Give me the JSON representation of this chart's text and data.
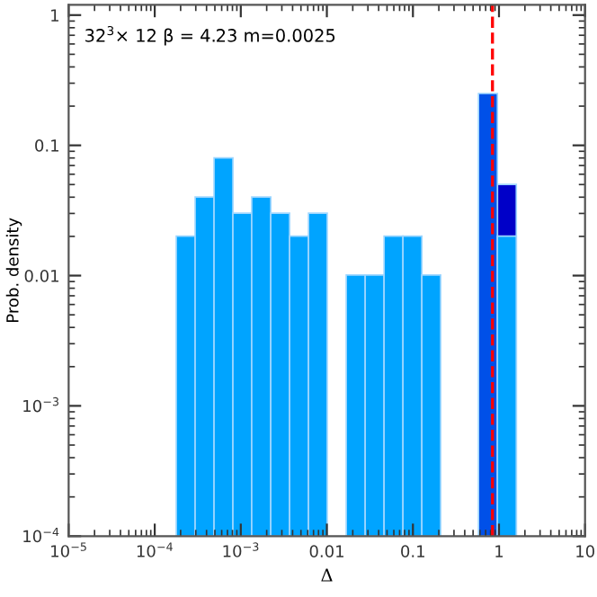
{
  "chart_data": {
    "type": "histogram",
    "annotations": [
      "32$^{3}$× 12 β = 4.23 m=0.0025"
    ],
    "xlabel": "Δ",
    "ylabel": "Prob. density",
    "bins": [
      0.000178,
      0.000295,
      0.000489,
      0.00081,
      0.00134,
      0.00223,
      0.00369,
      0.00612,
      0.0101,
      0.0168,
      0.0279,
      0.0462,
      0.0766,
      0.127,
      0.21,
      0.349,
      0.578,
      0.959,
      1.59
    ],
    "series": [
      {
        "color": "#0000c8",
        "values": [
          null,
          null,
          null,
          null,
          null,
          null,
          null,
          null,
          null,
          null,
          null,
          null,
          null,
          null,
          null,
          null,
          null,
          0.05
        ]
      },
      {
        "color": "#0050e8",
        "values": [
          null,
          null,
          null,
          null,
          null,
          null,
          null,
          null,
          null,
          null,
          null,
          null,
          null,
          null,
          null,
          null,
          0.25,
          null
        ]
      },
      {
        "color": "#00a4ff",
        "values": [
          0.02,
          0.04,
          0.08,
          0.03,
          0.04,
          0.03,
          0.02,
          0.03,
          null,
          0.01,
          0.01,
          0.02,
          0.02,
          0.01,
          null,
          null,
          null,
          0.02
        ]
      }
    ],
    "log": "xy",
    "xlim": [
      1e-05,
      10
    ],
    "ylim": [
      0.0001,
      1.2
    ],
    "xticks": [
      {
        "value": 1e-05,
        "label": "10$^{−5}$"
      },
      {
        "value": 0.0001,
        "label": "10$^{−4}$"
      },
      {
        "value": 0.001,
        "label": "10$^{−3}$"
      },
      0.01,
      0.1,
      1,
      10
    ],
    "yticks": [
      {
        "value": 0.0001,
        "label": "10$^{−4}$"
      },
      {
        "value": 0.001,
        "label": "10$^{−3}$"
      },
      0.01,
      0.1,
      1
    ],
    "ref_lines": [
      {
        "axis": "x",
        "value": 0.84,
        "color": "#ff0000",
        "line_style": "dashed"
      }
    ],
    "grid": false,
    "legend": false
  }
}
